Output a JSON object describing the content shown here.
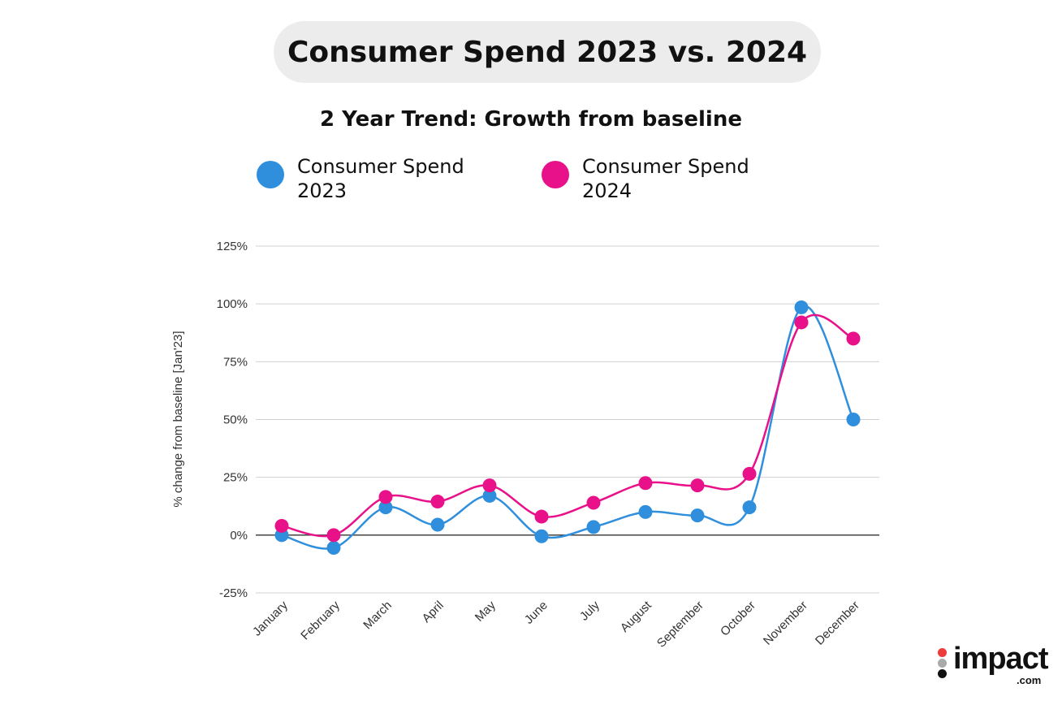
{
  "header": {
    "title": "Consumer Spend 2023 vs. 2024"
  },
  "logo": {
    "text": "impact",
    "suffix": ".com"
  },
  "chart_data": {
    "type": "line",
    "title": "2 Year Trend: Growth from baseline",
    "xlabel": "",
    "ylabel": "% change from baseline [Jan'23]",
    "ylim": [
      -25,
      125
    ],
    "yticks": [
      "-25%",
      "0%",
      "25%",
      "50%",
      "75%",
      "100%",
      "125%"
    ],
    "ytick_values": [
      -25,
      0,
      25,
      50,
      75,
      100,
      125
    ],
    "grid": true,
    "legend": "top",
    "smooth": true,
    "categories": [
      "January",
      "February",
      "March",
      "April",
      "May",
      "June",
      "July",
      "August",
      "September",
      "October",
      "November",
      "December"
    ],
    "series": [
      {
        "name": "Consumer Spend 2023",
        "color": "#2f8fdd",
        "values": [
          0,
          -5.5,
          12,
          4.5,
          17,
          -0.5,
          3.5,
          10,
          8.5,
          12,
          98.5,
          50
        ]
      },
      {
        "name": "Consumer Spend 2024",
        "color": "#e8118a",
        "values": [
          4,
          0,
          16.5,
          14.5,
          21.5,
          8,
          14,
          22.5,
          21.5,
          26.5,
          92,
          85
        ]
      }
    ]
  }
}
